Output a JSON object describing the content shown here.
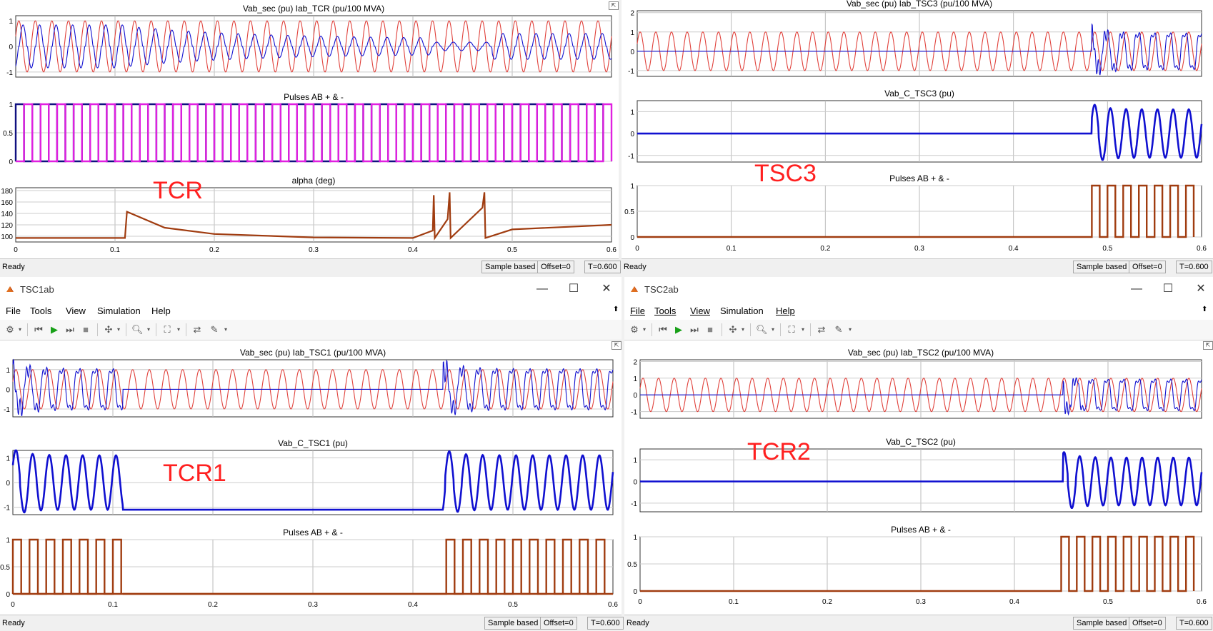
{
  "colors": {
    "red": "#e0403a",
    "blue": "#1010d0",
    "magenta": "#e020e0",
    "navy": "#101080",
    "brown": "#a03c10",
    "annotation": "#ff2020"
  },
  "annotations": {
    "tcr": "TCR",
    "tsc3": "TSC3",
    "tcr1": "TCR1",
    "tcr2": "TCR2"
  },
  "windows": [
    {
      "id": "tcr",
      "title": "",
      "status": {
        "ready": "Ready",
        "mode": "Sample based",
        "offset": "Offset=0",
        "time": "T=0.600"
      },
      "axes": [
        {
          "title": "Vab_sec (pu)  Iab_TCR (pu/100 MVA)",
          "yticks": [
            "1",
            "0",
            "-1"
          ]
        },
        {
          "title": "Pulses AB + & -",
          "yticks": [
            "1",
            "0.5",
            "0"
          ]
        },
        {
          "title": "alpha (deg)",
          "yticks": [
            "180",
            "160",
            "140",
            "120",
            "100"
          ],
          "xticks": [
            "0",
            "0.1",
            "0.2",
            "0.3",
            "0.4",
            "0.5",
            "0.6"
          ]
        }
      ]
    },
    {
      "id": "tsc3",
      "title": "",
      "status": {
        "ready": "Ready",
        "mode": "Sample based",
        "offset": "Offset=0",
        "time": "T=0.600"
      },
      "axes": [
        {
          "title": "Vab_sec (pu)  Iab_TSC3 (pu/100 MVA)",
          "yticks": [
            "2",
            "1",
            "0",
            "-1"
          ]
        },
        {
          "title": "Vab_C_TSC3 (pu)",
          "yticks": [
            "1",
            "0",
            "-1"
          ]
        },
        {
          "title": "Pulses AB + & -",
          "yticks": [
            "1",
            "0.5",
            "0"
          ],
          "xticks": [
            "0",
            "0.1",
            "0.2",
            "0.3",
            "0.4",
            "0.5",
            "0.6"
          ]
        }
      ]
    },
    {
      "id": "tsc1",
      "title": "TSC1ab",
      "menu": [
        "File",
        "Tools",
        "View",
        "Simulation",
        "Help"
      ],
      "status": {
        "ready": "Ready",
        "mode": "Sample based",
        "offset": "Offset=0",
        "time": "T=0.600"
      },
      "axes": [
        {
          "title": "Vab_sec (pu)  Iab_TSC1 (pu/100 MVA)",
          "yticks": [
            "1",
            "0",
            "-1"
          ]
        },
        {
          "title": "Vab_C_TSC1 (pu)",
          "yticks": [
            "1",
            "0",
            "-1"
          ]
        },
        {
          "title": "Pulses AB + & -",
          "yticks": [
            "1",
            "0.5",
            "0"
          ],
          "xticks": [
            "0",
            "0.1",
            "0.2",
            "0.3",
            "0.4",
            "0.5",
            "0.6"
          ]
        }
      ]
    },
    {
      "id": "tsc2",
      "title": "TSC2ab",
      "menu": [
        "File",
        "Tools",
        "View",
        "Simulation",
        "Help"
      ],
      "status": {
        "ready": "Ready",
        "mode": "Sample based",
        "offset": "Offset=0",
        "time": "T=0.600"
      },
      "axes": [
        {
          "title": "Vab_sec (pu)  Iab_TSC2 (pu/100 MVA)",
          "yticks": [
            "2",
            "1",
            "0",
            "-1"
          ]
        },
        {
          "title": "Vab_C_TSC2 (pu)",
          "yticks": [
            "1",
            "0",
            "-1"
          ]
        },
        {
          "title": "Pulses AB + & -",
          "yticks": [
            "1",
            "0.5",
            "0"
          ],
          "xticks": [
            "0",
            "0.1",
            "0.2",
            "0.3",
            "0.4",
            "0.5",
            "0.6"
          ]
        }
      ]
    }
  ],
  "chart_data": [
    {
      "type": "line",
      "title": "Vab_sec (pu)  Iab_TCR (pu/100 MVA)",
      "xlim": [
        0,
        0.6
      ],
      "ylim": [
        -1.2,
        1.2
      ],
      "series": [
        {
          "color": "#e0403a",
          "kind": "sine",
          "amp": 1,
          "freq": 60
        },
        {
          "color": "#1010d0",
          "kind": "tcr_current",
          "amp": 0.9,
          "freq": 60
        }
      ]
    },
    {
      "type": "line",
      "title": "Pulses AB + & -",
      "xlim": [
        0,
        0.6
      ],
      "ylim": [
        0,
        1
      ],
      "series": [
        {
          "color": "#101080",
          "kind": "pulse",
          "start": 0.0,
          "end": 0.6,
          "freq": 60
        },
        {
          "color": "#e020e0",
          "kind": "pulse",
          "start": 0.0,
          "end": 0.6,
          "freq": 60,
          "phase": 0.5
        }
      ]
    },
    {
      "type": "line",
      "title": "alpha (deg)",
      "xlim": [
        0,
        0.6
      ],
      "ylim": [
        90,
        185
      ],
      "series": [
        {
          "color": "#a03c10",
          "kind": "alpha",
          "points": [
            [
              0,
              97
            ],
            [
              0.11,
              97
            ],
            [
              0.112,
              143
            ],
            [
              0.15,
              115
            ],
            [
              0.2,
              104
            ],
            [
              0.3,
              98
            ],
            [
              0.4,
              97
            ],
            [
              0.42,
              110
            ],
            [
              0.421,
              172
            ],
            [
              0.422,
              97
            ],
            [
              0.435,
              130
            ],
            [
              0.437,
              177
            ],
            [
              0.438,
              97
            ],
            [
              0.47,
              150
            ],
            [
              0.472,
              177
            ],
            [
              0.473,
              97
            ],
            [
              0.5,
              112
            ],
            [
              0.6,
              120
            ]
          ]
        }
      ]
    },
    {
      "type": "line",
      "title": "Vab_sec (pu)  Iab_TSC3 (pu/100 MVA)",
      "xlim": [
        0,
        0.6
      ],
      "ylim": [
        -1.3,
        2.1
      ],
      "series": [
        {
          "color": "#e0403a",
          "kind": "sine",
          "amp": 1,
          "freq": 60
        },
        {
          "color": "#1010d0",
          "kind": "tsc_current",
          "amp": 1,
          "freq": 60,
          "on": 0.483
        }
      ]
    },
    {
      "type": "line",
      "title": "Vab_C_TSC3 (pu)",
      "xlim": [
        0,
        0.6
      ],
      "ylim": [
        -1.3,
        1.5
      ],
      "series": [
        {
          "color": "#1010d0",
          "kind": "cap_voltage",
          "amp": 1.1,
          "freq": 60,
          "segments": [
            [
              0.483,
              0.6
            ]
          ]
        }
      ]
    },
    {
      "type": "line",
      "title": "Pulses AB + & -",
      "xlim": [
        0,
        0.6
      ],
      "ylim": [
        0,
        1
      ],
      "series": [
        {
          "color": "#a03c10",
          "kind": "pulse",
          "start": 0.48,
          "end": 0.6,
          "freq": 60
        }
      ]
    },
    {
      "type": "line",
      "title": "Vab_sec (pu)  Iab_TSC1 (pu/100 MVA)",
      "xlim": [
        0,
        0.6
      ],
      "ylim": [
        -1.4,
        1.5
      ],
      "series": [
        {
          "color": "#e0403a",
          "kind": "sine",
          "amp": 1,
          "freq": 60
        },
        {
          "color": "#1010d0",
          "kind": "tsc_current",
          "amp": 1.1,
          "freq": 60,
          "segments": [
            [
              0.0,
              0.11
            ],
            [
              0.43,
              0.6
            ]
          ]
        }
      ]
    },
    {
      "type": "line",
      "title": "Vab_C_TSC1 (pu)",
      "xlim": [
        0,
        0.6
      ],
      "ylim": [
        -1.3,
        1.3
      ],
      "series": [
        {
          "color": "#1010d0",
          "kind": "cap_voltage",
          "amp": 1.1,
          "freq": 60,
          "segments": [
            [
              0.0,
              0.11
            ],
            [
              0.43,
              0.6
            ]
          ],
          "hold": -1.1
        }
      ]
    },
    {
      "type": "line",
      "title": "Pulses AB + & -",
      "xlim": [
        0,
        0.6
      ],
      "ylim": [
        0,
        1
      ],
      "series": [
        {
          "color": "#a03c10",
          "kind": "pulse",
          "start": 0.0,
          "end": 0.11,
          "freq": 60
        },
        {
          "color": "#a03c10",
          "kind": "pulse",
          "start": 0.43,
          "end": 0.6,
          "freq": 60
        }
      ]
    },
    {
      "type": "line",
      "title": "Vab_sec (pu)  Iab_TSC2 (pu/100 MVA)",
      "xlim": [
        0,
        0.6
      ],
      "ylim": [
        -1.4,
        2.1
      ],
      "series": [
        {
          "color": "#e0403a",
          "kind": "sine",
          "amp": 1,
          "freq": 60
        },
        {
          "color": "#1010d0",
          "kind": "tsc_current",
          "amp": 1,
          "freq": 60,
          "on": 0.452
        }
      ]
    },
    {
      "type": "line",
      "title": "Vab_C_TSC2 (pu)",
      "xlim": [
        0,
        0.6
      ],
      "ylim": [
        -1.4,
        1.5
      ],
      "series": [
        {
          "color": "#1010d0",
          "kind": "cap_voltage",
          "amp": 1.1,
          "freq": 60,
          "segments": [
            [
              0.452,
              0.6
            ]
          ]
        }
      ]
    },
    {
      "type": "line",
      "title": "Pulses AB + & -",
      "xlim": [
        0,
        0.6
      ],
      "ylim": [
        0,
        1
      ],
      "series": [
        {
          "color": "#a03c10",
          "kind": "pulse",
          "start": 0.448,
          "end": 0.6,
          "freq": 60
        }
      ]
    }
  ]
}
